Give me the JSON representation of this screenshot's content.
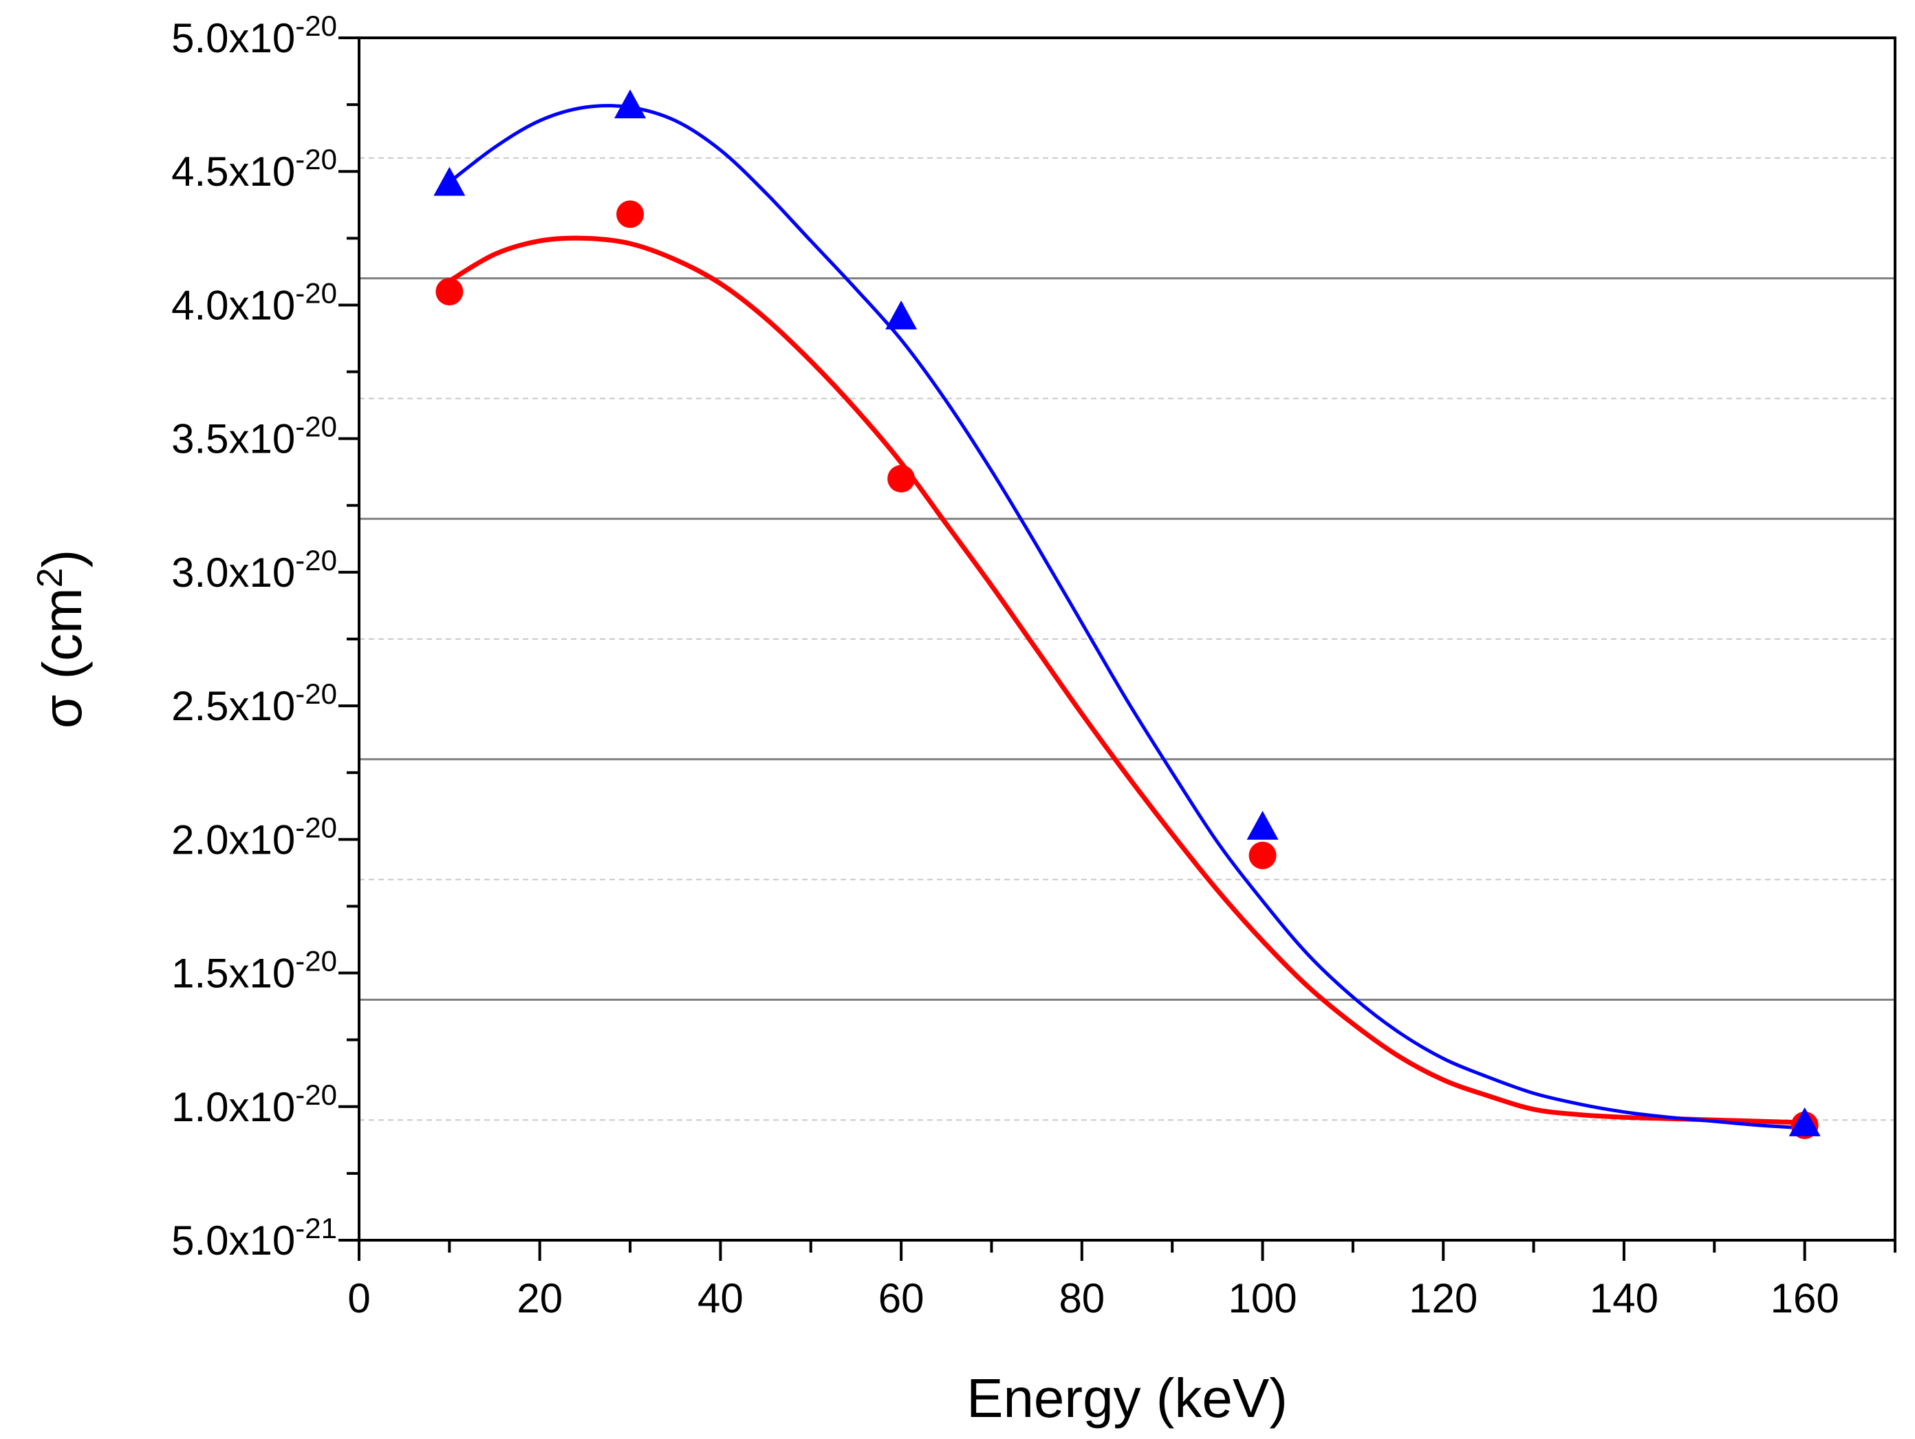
{
  "chart_data": {
    "type": "scatter",
    "title": "",
    "xlabel": "Energy (keV)",
    "ylabel": {
      "prefix": "σ (cm",
      "sup": "2",
      "suffix": ")"
    },
    "xlim": [
      0,
      170
    ],
    "ylim": [
      5e-21,
      5e-20
    ],
    "x_major_ticks": [
      0,
      20,
      40,
      60,
      80,
      100,
      120,
      140,
      160
    ],
    "x_tick_labels": [
      "0",
      "20",
      "40",
      "60",
      "80",
      "100",
      "120",
      "140",
      "160"
    ],
    "x_minor_step": 10,
    "y_major_ticks": [
      5e-21,
      1e-20,
      1.5e-20,
      2e-20,
      2.5e-20,
      3e-20,
      3.5e-20,
      4e-20,
      4.5e-20,
      5e-20
    ],
    "y_tick_labels": [
      {
        "mant": "5.0x10",
        "exp": "-21"
      },
      {
        "mant": "1.0x10",
        "exp": "-20"
      },
      {
        "mant": "1.5x10",
        "exp": "-20"
      },
      {
        "mant": "2.0x10",
        "exp": "-20"
      },
      {
        "mant": "2.5x10",
        "exp": "-20"
      },
      {
        "mant": "3.0x10",
        "exp": "-20"
      },
      {
        "mant": "3.5x10",
        "exp": "-20"
      },
      {
        "mant": "4.0x10",
        "exp": "-20"
      },
      {
        "mant": "4.5x10",
        "exp": "-20"
      },
      {
        "mant": "5.0x10",
        "exp": "-20"
      }
    ],
    "y_minor_step": 2.5e-21,
    "gridlines_solid": [
      1.4e-20,
      2.3e-20,
      3.2e-20,
      4.1e-20
    ],
    "gridlines_dashed": [
      9.5e-21,
      1.85e-20,
      2.75e-20,
      3.65e-20,
      4.55e-20
    ],
    "legend": "none",
    "series": [
      {
        "name": "circles",
        "marker": "circle",
        "color": "#ff0000",
        "x": [
          10,
          30,
          60,
          100,
          160
        ],
        "y": [
          4.05e-20,
          4.34e-20,
          3.35e-20,
          1.94e-20,
          9.3e-21
        ],
        "fit": {
          "color": "#ff0000",
          "x": [
            10,
            15,
            20,
            25,
            30,
            35,
            40,
            45,
            50,
            55,
            60,
            65,
            70,
            75,
            80,
            85,
            90,
            95,
            100,
            105,
            110,
            115,
            120,
            125,
            130,
            135,
            140,
            145,
            150,
            155,
            160
          ],
          "y": [
            4.09e-20,
            4.19e-20,
            4.24e-20,
            4.25e-20,
            4.23e-20,
            4.17e-20,
            4.08e-20,
            3.95e-20,
            3.79e-20,
            3.61e-20,
            3.41e-20,
            3.18e-20,
            2.95e-20,
            2.71e-20,
            2.47e-20,
            2.24e-20,
            2.02e-20,
            1.81e-20,
            1.62e-20,
            1.45e-20,
            1.31e-20,
            1.19e-20,
            1.1e-20,
            1.04e-20,
            9.9e-21,
            9.7e-21,
            9.6e-21,
            9.55e-21,
            9.5e-21,
            9.45e-21,
            9.4e-21
          ]
        }
      },
      {
        "name": "triangles",
        "marker": "triangle",
        "color": "#0000ff",
        "x": [
          10,
          30,
          60,
          100,
          160
        ],
        "y": [
          4.45e-20,
          4.74e-20,
          3.95e-20,
          2.04e-20,
          9.3e-21
        ],
        "fit": {
          "color": "#0000ff",
          "x": [
            10,
            15,
            20,
            25,
            30,
            35,
            40,
            45,
            50,
            55,
            60,
            65,
            70,
            75,
            80,
            85,
            90,
            95,
            100,
            105,
            110,
            115,
            120,
            125,
            130,
            135,
            140,
            145,
            150,
            155,
            160
          ],
          "y": [
            4.46e-20,
            4.59e-20,
            4.69e-20,
            4.74e-20,
            4.74e-20,
            4.69e-20,
            4.58e-20,
            4.42e-20,
            4.24e-20,
            4.06e-20,
            3.87e-20,
            3.64e-20,
            3.38e-20,
            3.1e-20,
            2.81e-20,
            2.52e-20,
            2.25e-20,
            1.99e-20,
            1.77e-20,
            1.57e-20,
            1.41e-20,
            1.28e-20,
            1.18e-20,
            1.11e-20,
            1.05e-20,
            1.01e-20,
            9.8e-21,
            9.6e-21,
            9.45e-21,
            9.3e-21,
            9.2e-21
          ]
        }
      }
    ]
  }
}
